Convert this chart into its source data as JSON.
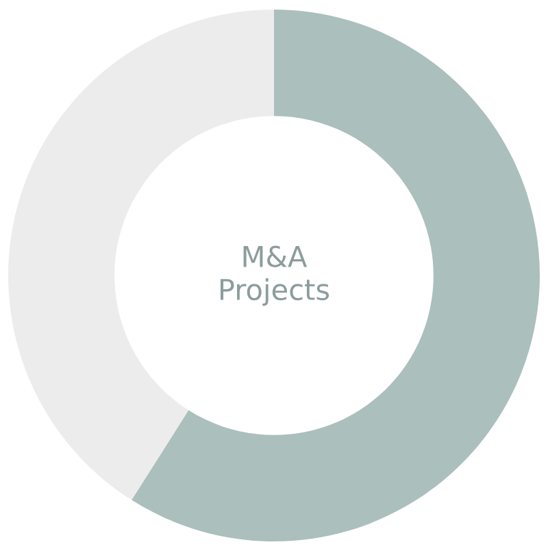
{
  "chart_data": {
    "type": "donut",
    "title": "M&A\nProjects",
    "categories": [
      null,
      null
    ],
    "values": [
      59,
      41
    ],
    "colors": [
      "#abbfbd",
      "#ececec"
    ]
  }
}
